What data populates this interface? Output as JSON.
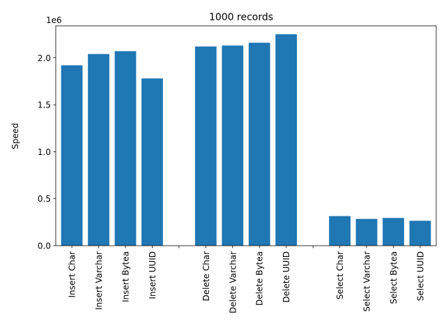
{
  "chart_data": {
    "type": "bar",
    "title": "1000 records",
    "ylabel": "Speed",
    "xlabel": "",
    "offset_label": "1e6",
    "ylim": [
      0,
      2340000
    ],
    "yticks": [
      0,
      500000,
      1000000,
      1500000,
      2000000
    ],
    "ytick_labels": [
      "0.0",
      "0.5",
      "1.0",
      "1.5",
      "2.0"
    ],
    "categories": [
      "Insert Char",
      "Insert Varchar",
      "Insert Bytea",
      "Insert UUID",
      "",
      "Delete Char",
      "Delete Varchar",
      "Delete Bytea",
      "Delete UUID",
      "",
      "Select Char",
      "Select Varchar",
      "Select Bytea",
      "Select UUID"
    ],
    "values": [
      1920000,
      2040000,
      2070000,
      1780000,
      0,
      2120000,
      2130000,
      2160000,
      2250000,
      0,
      315000,
      285000,
      295000,
      265000
    ],
    "color": "#1f77b4",
    "grid": false
  }
}
